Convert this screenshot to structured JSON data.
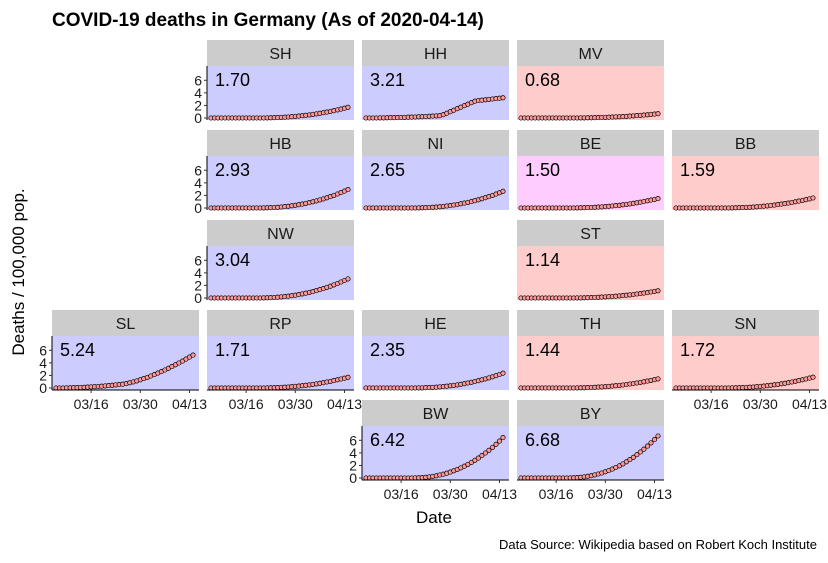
{
  "title": "COVID-19 deaths in Germany (As of 2020-04-14)",
  "xlabel": "Date",
  "ylabel": "Deaths / 100,000 pop.",
  "caption": "Data Source: Wikipedia based on Robert Koch Institute",
  "colors": {
    "strip": "#cccccc",
    "blue": "#ccccff",
    "red": "#ffcccc",
    "pink": "#ffccff",
    "point_fill": "#ff9999",
    "line": "#e8112d"
  },
  "chart_data": {
    "type": "scatter",
    "x_range": [
      "2020-03-06",
      "2020-04-14"
    ],
    "x_ticks": [
      "03/16",
      "03/30",
      "04/13"
    ],
    "y_ticks": [
      0,
      2,
      4,
      6
    ],
    "ylim": [
      0,
      7
    ],
    "panels": [
      {
        "name": "SH",
        "value": "1.70",
        "final": 1.7,
        "bg": "blue",
        "shape": "steady",
        "row": 0,
        "col": 1,
        "x_axis": false
      },
      {
        "name": "HH",
        "value": "3.21",
        "final": 3.21,
        "bg": "blue",
        "shape": "hh",
        "row": 0,
        "col": 2,
        "x_axis": false
      },
      {
        "name": "MV",
        "value": "0.68",
        "final": 0.68,
        "bg": "red",
        "shape": "steady",
        "row": 0,
        "col": 3,
        "x_axis": false
      },
      {
        "name": "HB",
        "value": "2.93",
        "final": 2.93,
        "bg": "blue",
        "shape": "steady",
        "row": 1,
        "col": 1,
        "x_axis": false
      },
      {
        "name": "NI",
        "value": "2.65",
        "final": 2.65,
        "bg": "blue",
        "shape": "steady",
        "row": 1,
        "col": 2,
        "x_axis": false
      },
      {
        "name": "BE",
        "value": "1.50",
        "final": 1.5,
        "bg": "pink",
        "shape": "steady",
        "row": 1,
        "col": 3,
        "x_axis": false
      },
      {
        "name": "BB",
        "value": "1.59",
        "final": 1.59,
        "bg": "red",
        "shape": "steady",
        "row": 1,
        "col": 4,
        "x_axis": false
      },
      {
        "name": "NW",
        "value": "3.04",
        "final": 3.04,
        "bg": "blue",
        "shape": "steady",
        "row": 2,
        "col": 1,
        "x_axis": false
      },
      {
        "name": "ST",
        "value": "1.14",
        "final": 1.14,
        "bg": "red",
        "shape": "steady",
        "row": 2,
        "col": 3,
        "x_axis": false
      },
      {
        "name": "SL",
        "value": "5.24",
        "final": 5.24,
        "bg": "blue",
        "shape": "sl",
        "row": 3,
        "col": 0,
        "x_axis": true
      },
      {
        "name": "RP",
        "value": "1.71",
        "final": 1.71,
        "bg": "blue",
        "shape": "steady",
        "row": 3,
        "col": 1,
        "x_axis": true
      },
      {
        "name": "HE",
        "value": "2.35",
        "final": 2.35,
        "bg": "blue",
        "shape": "steady",
        "row": 3,
        "col": 2,
        "x_axis": false
      },
      {
        "name": "TH",
        "value": "1.44",
        "final": 1.44,
        "bg": "red",
        "shape": "steady",
        "row": 3,
        "col": 3,
        "x_axis": false
      },
      {
        "name": "SN",
        "value": "1.72",
        "final": 1.72,
        "bg": "red",
        "shape": "steady",
        "row": 3,
        "col": 4,
        "x_axis": true
      },
      {
        "name": "BW",
        "value": "6.42",
        "final": 6.42,
        "bg": "blue",
        "shape": "steady",
        "row": 4,
        "col": 2,
        "x_axis": true
      },
      {
        "name": "BY",
        "value": "6.68",
        "final": 6.68,
        "bg": "blue",
        "shape": "steady",
        "row": 4,
        "col": 3,
        "x_axis": true
      }
    ]
  }
}
